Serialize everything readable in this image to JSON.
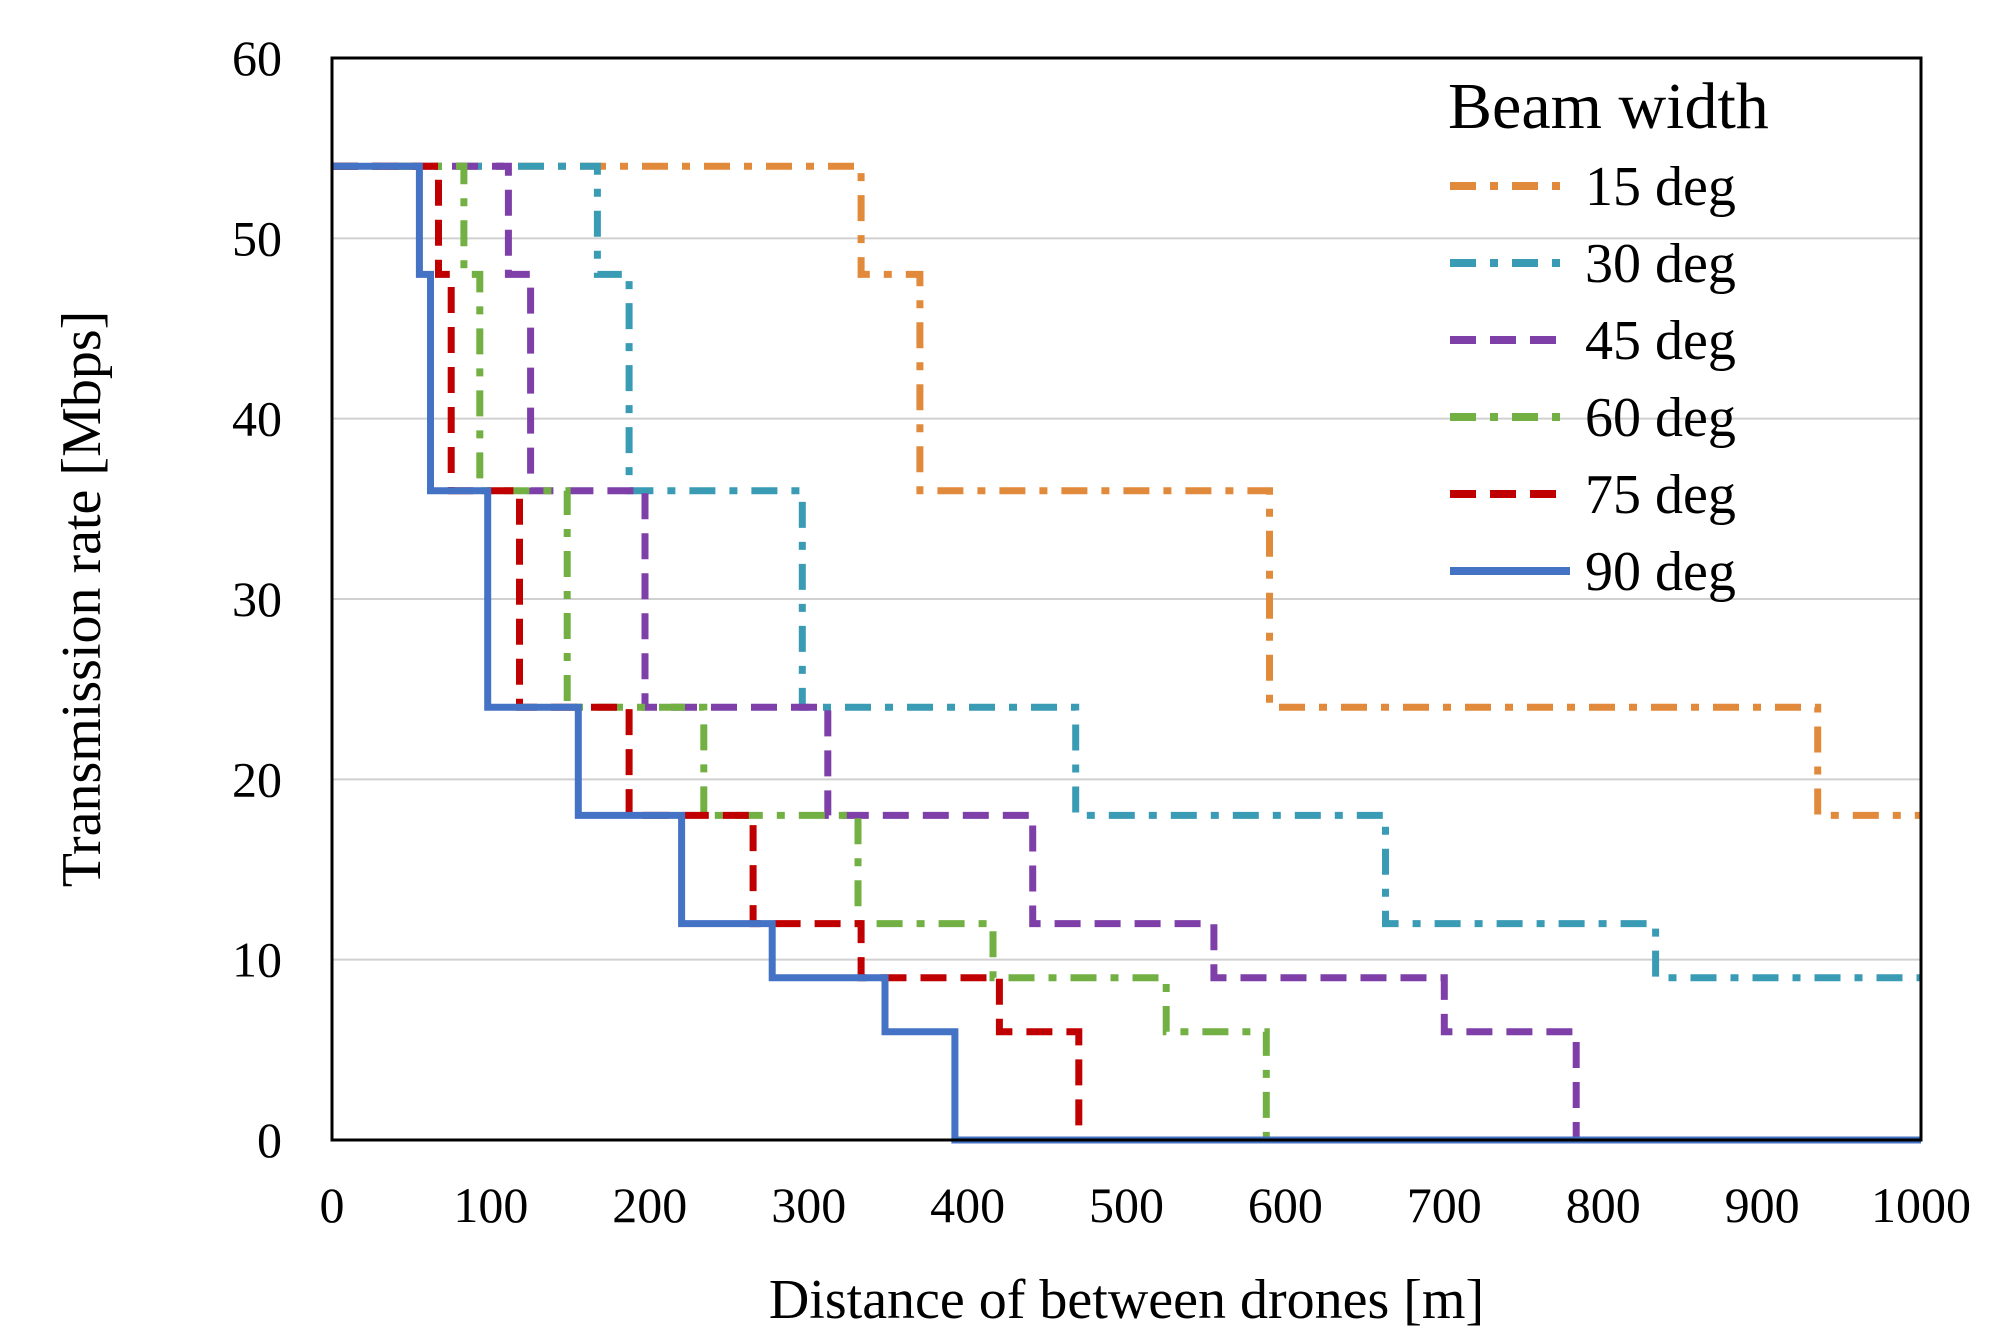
{
  "chart_data": {
    "type": "line",
    "step": true,
    "title": "",
    "xlabel": "Distance of between drones [m]",
    "ylabel": "Transmission rate [Mbps]",
    "xlim": [
      0,
      1000
    ],
    "ylim": [
      0,
      60
    ],
    "x_ticks": [
      0,
      100,
      200,
      300,
      400,
      500,
      600,
      700,
      800,
      900,
      1000
    ],
    "x_tick_labels": [
      "0",
      "100",
      "200",
      "300",
      "400",
      "500",
      "600",
      "700",
      "800",
      "900",
      "1000"
    ],
    "y_ticks": [
      0,
      10,
      20,
      30,
      40,
      50,
      60
    ],
    "y_tick_labels": [
      "0",
      "10",
      "20",
      "30",
      "40",
      "50",
      "60"
    ],
    "grid": "horizontal",
    "legend_title": "Beam width",
    "legend_position": "top-right",
    "series": [
      {
        "name": "15 deg",
        "color": "#E28A3C",
        "dash": "dashdot",
        "points": [
          [
            0,
            54
          ],
          [
            333,
            54
          ],
          [
            333,
            48
          ],
          [
            370,
            48
          ],
          [
            370,
            36
          ],
          [
            590,
            36
          ],
          [
            590,
            24
          ],
          [
            935,
            24
          ],
          [
            935,
            18
          ],
          [
            1000,
            18
          ]
        ]
      },
      {
        "name": "30 deg",
        "color": "#3A9BB5",
        "dash": "dashdot",
        "points": [
          [
            0,
            54
          ],
          [
            167,
            54
          ],
          [
            167,
            48
          ],
          [
            187,
            48
          ],
          [
            187,
            36
          ],
          [
            296,
            36
          ],
          [
            296,
            24
          ],
          [
            468,
            24
          ],
          [
            468,
            18
          ],
          [
            663,
            18
          ],
          [
            663,
            12
          ],
          [
            833,
            12
          ],
          [
            833,
            9
          ],
          [
            1000,
            9
          ]
        ]
      },
      {
        "name": "45 deg",
        "color": "#7E3FA8",
        "dash": "dash",
        "points": [
          [
            0,
            54
          ],
          [
            111,
            54
          ],
          [
            111,
            48
          ],
          [
            125,
            48
          ],
          [
            125,
            36
          ],
          [
            197,
            36
          ],
          [
            197,
            24
          ],
          [
            312,
            24
          ],
          [
            312,
            18
          ],
          [
            441,
            18
          ],
          [
            441,
            12
          ],
          [
            555,
            12
          ],
          [
            555,
            9
          ],
          [
            700,
            9
          ],
          [
            700,
            6
          ],
          [
            783,
            6
          ],
          [
            783,
            0
          ],
          [
            1000,
            0
          ]
        ]
      },
      {
        "name": "60 deg",
        "color": "#72B043",
        "dash": "dashdot",
        "points": [
          [
            0,
            54
          ],
          [
            83,
            54
          ],
          [
            83,
            48
          ],
          [
            93,
            48
          ],
          [
            93,
            36
          ],
          [
            148,
            36
          ],
          [
            148,
            24
          ],
          [
            234,
            24
          ],
          [
            234,
            18
          ],
          [
            331,
            18
          ],
          [
            331,
            12
          ],
          [
            416,
            12
          ],
          [
            416,
            9
          ],
          [
            525,
            9
          ],
          [
            525,
            6
          ],
          [
            588,
            6
          ],
          [
            588,
            0
          ],
          [
            1000,
            0
          ]
        ]
      },
      {
        "name": "75 deg",
        "color": "#C00000",
        "dash": "dash",
        "points": [
          [
            0,
            54
          ],
          [
            67,
            54
          ],
          [
            67,
            48
          ],
          [
            75,
            48
          ],
          [
            75,
            36
          ],
          [
            118,
            36
          ],
          [
            118,
            24
          ],
          [
            187,
            24
          ],
          [
            187,
            18
          ],
          [
            265,
            18
          ],
          [
            265,
            12
          ],
          [
            333,
            12
          ],
          [
            333,
            9
          ],
          [
            420,
            9
          ],
          [
            420,
            6
          ],
          [
            470,
            6
          ],
          [
            470,
            0
          ],
          [
            1000,
            0
          ]
        ]
      },
      {
        "name": "90 deg",
        "color": "#4472C4",
        "dash": "solid",
        "points": [
          [
            0,
            54
          ],
          [
            55,
            54
          ],
          [
            55,
            48
          ],
          [
            62,
            48
          ],
          [
            62,
            36
          ],
          [
            98,
            36
          ],
          [
            98,
            24
          ],
          [
            155,
            24
          ],
          [
            155,
            18
          ],
          [
            220,
            18
          ],
          [
            220,
            12
          ],
          [
            277,
            12
          ],
          [
            277,
            9
          ],
          [
            348,
            9
          ],
          [
            348,
            6
          ],
          [
            392,
            6
          ],
          [
            392,
            0
          ],
          [
            1000,
            0
          ]
        ]
      }
    ]
  }
}
